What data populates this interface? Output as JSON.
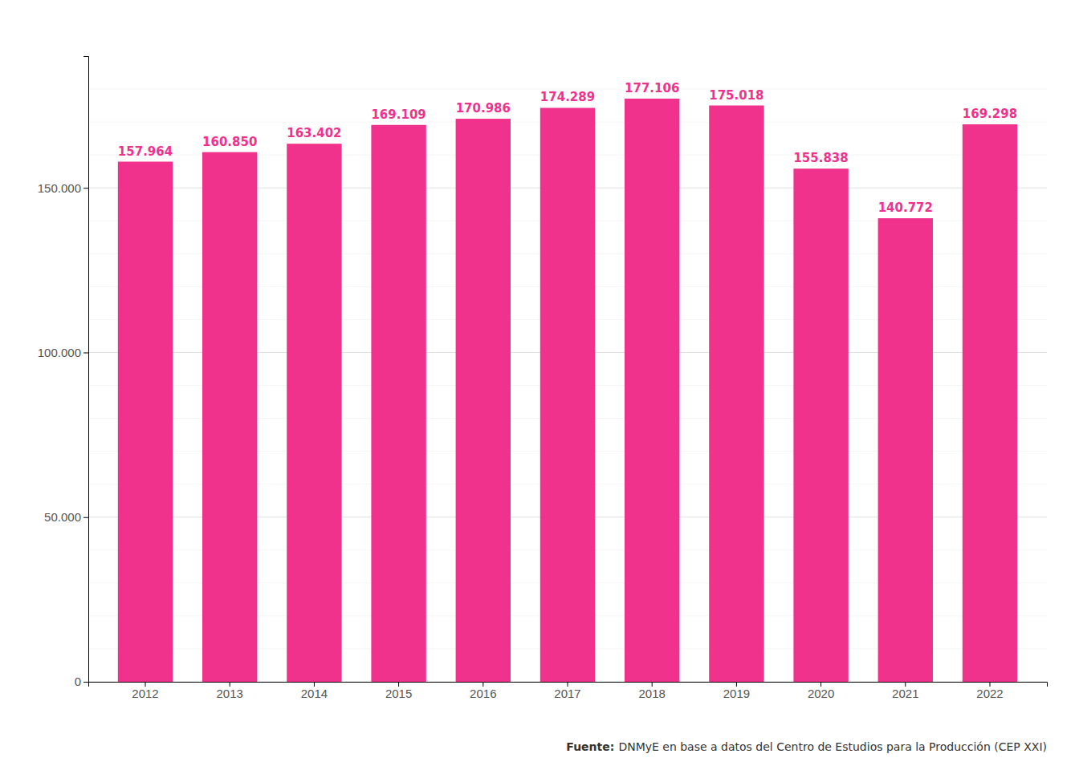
{
  "chart_data": {
    "type": "bar",
    "categories": [
      "2012",
      "2013",
      "2014",
      "2015",
      "2016",
      "2017",
      "2018",
      "2019",
      "2020",
      "2021",
      "2022"
    ],
    "values": [
      157964,
      160850,
      163402,
      169109,
      170986,
      174289,
      177106,
      175018,
      155838,
      140772,
      169298
    ],
    "value_labels": [
      "157.964",
      "160.850",
      "163.402",
      "169.109",
      "170.986",
      "174.289",
      "177.106",
      "175.018",
      "155.838",
      "140.772",
      "169.298"
    ],
    "data_labels": true,
    "color": "#F0328C",
    "ylim": [
      0,
      190000
    ],
    "yticks": [
      0,
      {
        "value": 50000,
        "label": "50.000"
      },
      {
        "value": 100000,
        "label": "100.000"
      },
      {
        "value": 150000,
        "label": "150.000"
      }
    ],
    "minor_yticks": [
      10000,
      20000,
      30000,
      40000,
      60000,
      70000,
      80000,
      90000,
      110000,
      120000,
      130000,
      140000,
      160000,
      170000,
      180000
    ],
    "grid": true,
    "annotations": [
      "Fuente:",
      "DNMyE en base a datos del Centro de Estudios para la Producción (CEP XXI)"
    ]
  }
}
